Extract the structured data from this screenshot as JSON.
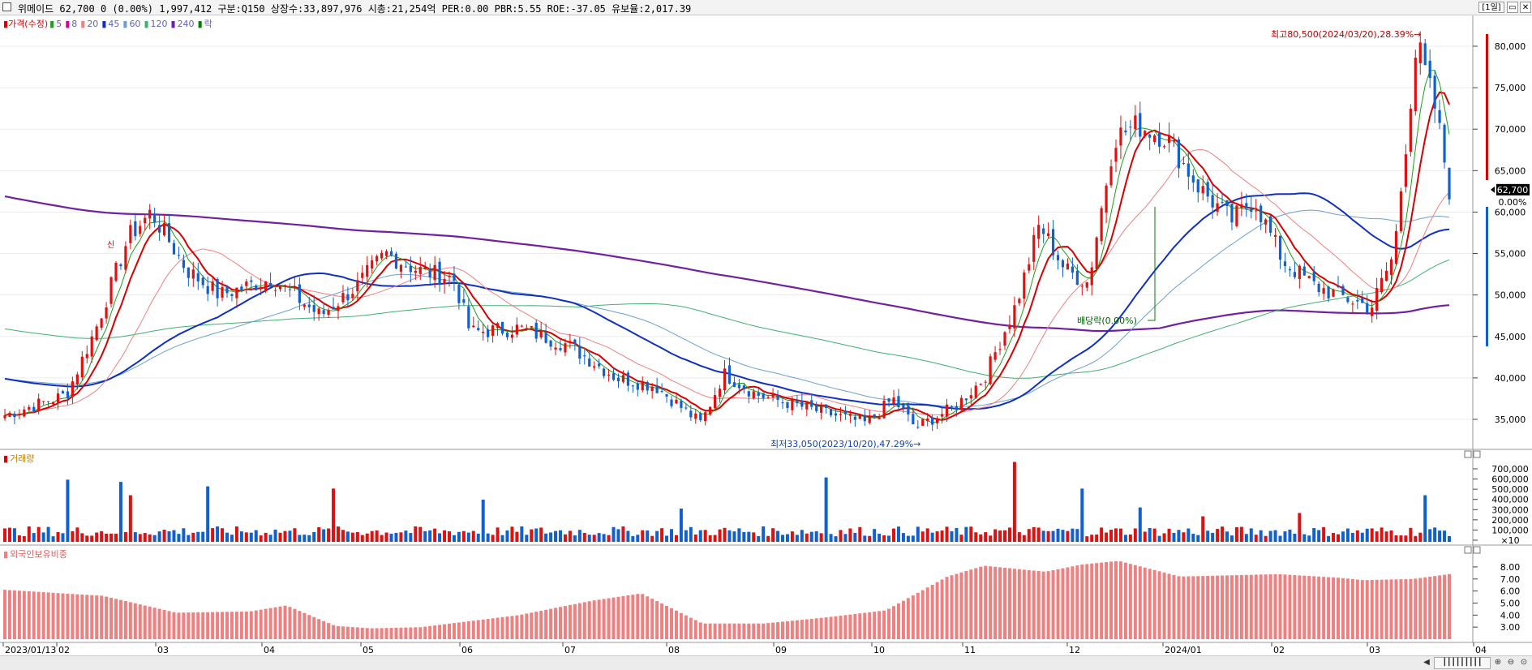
{
  "header": {
    "title": "위메이드   62,700   0  (0.00%)   1,997,412  구분:Q150  상장수:33,897,976  시총:21,254억  PER:0.00  PBR:5.55  ROE:-37.05  유보율:2,017.39",
    "period_button": "[1일]",
    "icons": [
      "checkbox-icon",
      "chart-icon",
      "minimize-icon",
      "close-icon"
    ]
  },
  "price_panel": {
    "legend": [
      {
        "label": "가격(수정)",
        "color": "#d80000"
      },
      {
        "label": "5",
        "color": "#1aa01a"
      },
      {
        "label": "8",
        "color": "#e0008c"
      },
      {
        "label": "20",
        "color": "#f08080"
      },
      {
        "label": "45",
        "color": "#1030c0"
      },
      {
        "label": "60",
        "color": "#6aa0d0"
      },
      {
        "label": "120",
        "color": "#40b070"
      },
      {
        "label": "240",
        "color": "#7020a0"
      },
      {
        "label": "락",
        "color": "#008000"
      }
    ],
    "annotations": {
      "high": "최고80,500(2024/03/20),28.39%",
      "low": "최저33,050(2023/10/20),47.29%",
      "ex_dividend": "배당락(0.00%)",
      "small_label": "신"
    },
    "y_ticks": [
      "80,000",
      "75,000",
      "70,000",
      "65,000",
      "60,000",
      "55,000",
      "50,000",
      "45,000",
      "40,000",
      "35,000"
    ],
    "current_price": "62,700",
    "current_change": "0.00%",
    "colors": {
      "up": "#e01010",
      "down": "#1060d0",
      "grid": "#e6e6e6"
    }
  },
  "volume_panel": {
    "legend": "거래량",
    "y_ticks": [
      "700,000",
      "600,000",
      "500,000",
      "400,000",
      "300,000",
      "200,000",
      "100,000",
      "×10"
    ]
  },
  "foreign_panel": {
    "legend": "외국인보유비중",
    "y_ticks": [
      "8.00",
      "7.00",
      "6.00",
      "5.00",
      "4.00",
      "3.00"
    ],
    "bar_color": "#f08080"
  },
  "x_axis": {
    "labels": [
      "2023/01/13",
      "02",
      "03",
      "04",
      "05",
      "06",
      "07",
      "08",
      "09",
      "10",
      "11",
      "12",
      "2024/01",
      "02",
      "03",
      "04"
    ]
  },
  "chart_data": [
    {
      "type": "line",
      "title": "",
      "series_names": [
        "가격(수정)",
        "5",
        "8",
        "20",
        "45",
        "60",
        "120",
        "240"
      ],
      "ylim": [
        33000,
        82000
      ],
      "anchor_points": [
        {
          "x": "2023/01/13",
          "close": 35500
        },
        {
          "x": "2023/02/01",
          "close": 38000
        },
        {
          "x": "2023/02/10",
          "close": 46000
        },
        {
          "x": "2023/02/20",
          "close": 57000
        },
        {
          "x": "2023/02/27",
          "close": 60000
        },
        {
          "x": "2023/03/10",
          "close": 53000
        },
        {
          "x": "2023/03/20",
          "close": 50000
        },
        {
          "x": "2023/04/05",
          "close": 52000
        },
        {
          "x": "2023/04/20",
          "close": 47500
        },
        {
          "x": "2023/05/01",
          "close": 51000
        },
        {
          "x": "2023/05/10",
          "close": 55000
        },
        {
          "x": "2023/05/20",
          "close": 53000
        },
        {
          "x": "2023/05/31",
          "close": 52000
        },
        {
          "x": "2023/06/05",
          "close": 45500
        },
        {
          "x": "2023/06/20",
          "close": 46000
        },
        {
          "x": "2023/07/05",
          "close": 44000
        },
        {
          "x": "2023/07/20",
          "close": 40000
        },
        {
          "x": "2023/08/01",
          "close": 39000
        },
        {
          "x": "2023/08/15",
          "close": 34500
        },
        {
          "x": "2023/08/22",
          "close": 40500
        },
        {
          "x": "2023/09/01",
          "close": 38000
        },
        {
          "x": "2023/09/20",
          "close": 36000
        },
        {
          "x": "2023/10/05",
          "close": 34500
        },
        {
          "x": "2023/10/13",
          "close": 37500
        },
        {
          "x": "2023/10/20",
          "close": 34000
        },
        {
          "x": "2023/11/01",
          "close": 36500
        },
        {
          "x": "2023/11/10",
          "close": 40000
        },
        {
          "x": "2023/11/20",
          "close": 49000
        },
        {
          "x": "2023/11/27",
          "close": 58500
        },
        {
          "x": "2023/12/05",
          "close": 53000
        },
        {
          "x": "2023/12/12",
          "close": 51500
        },
        {
          "x": "2023/12/20",
          "close": 69000
        },
        {
          "x": "2023/12/27",
          "close": 70500
        },
        {
          "x": "2024/01/05",
          "close": 69000
        },
        {
          "x": "2024/01/15",
          "close": 63000
        },
        {
          "x": "2024/01/25",
          "close": 59000
        },
        {
          "x": "2024/02/01",
          "close": 61500
        },
        {
          "x": "2024/02/10",
          "close": 54000
        },
        {
          "x": "2024/02/20",
          "close": 51000
        },
        {
          "x": "2024/03/01",
          "close": 49500
        },
        {
          "x": "2024/03/08",
          "close": 48500
        },
        {
          "x": "2024/03/15",
          "close": 55000
        },
        {
          "x": "2024/03/22",
          "close": 80500
        },
        {
          "x": "2024/03/28",
          "close": 72000
        },
        {
          "x": "2024/04/01",
          "close": 62700
        }
      ]
    }
  ]
}
